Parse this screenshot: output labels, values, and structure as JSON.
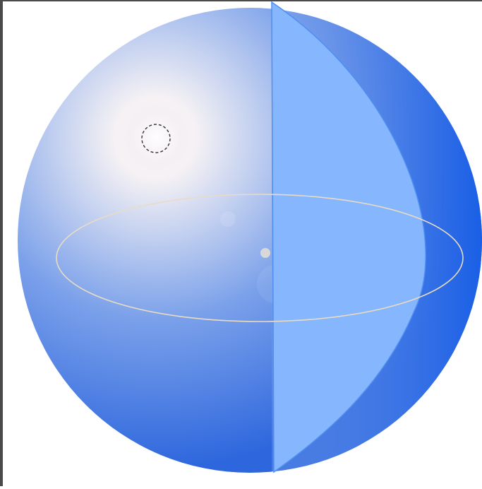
{
  "scene": {
    "background": "#ffffff",
    "frame_color": "#4a4a4a",
    "sphere": {
      "highlight_color": "#f6f2f4",
      "mid_color": "#7aa0ea",
      "shadow_color": "#2d66dd",
      "right_shade_color": "#1a5fe6"
    },
    "wedge": {
      "fill_color": "#86b6fd",
      "stroke_color": "#4f8ff0"
    },
    "equator": {
      "stroke_color": "#e8dcc4"
    },
    "center_point": {
      "color": "#d8d8d8"
    },
    "sun_marker": {
      "stroke_color": "#333333"
    }
  }
}
